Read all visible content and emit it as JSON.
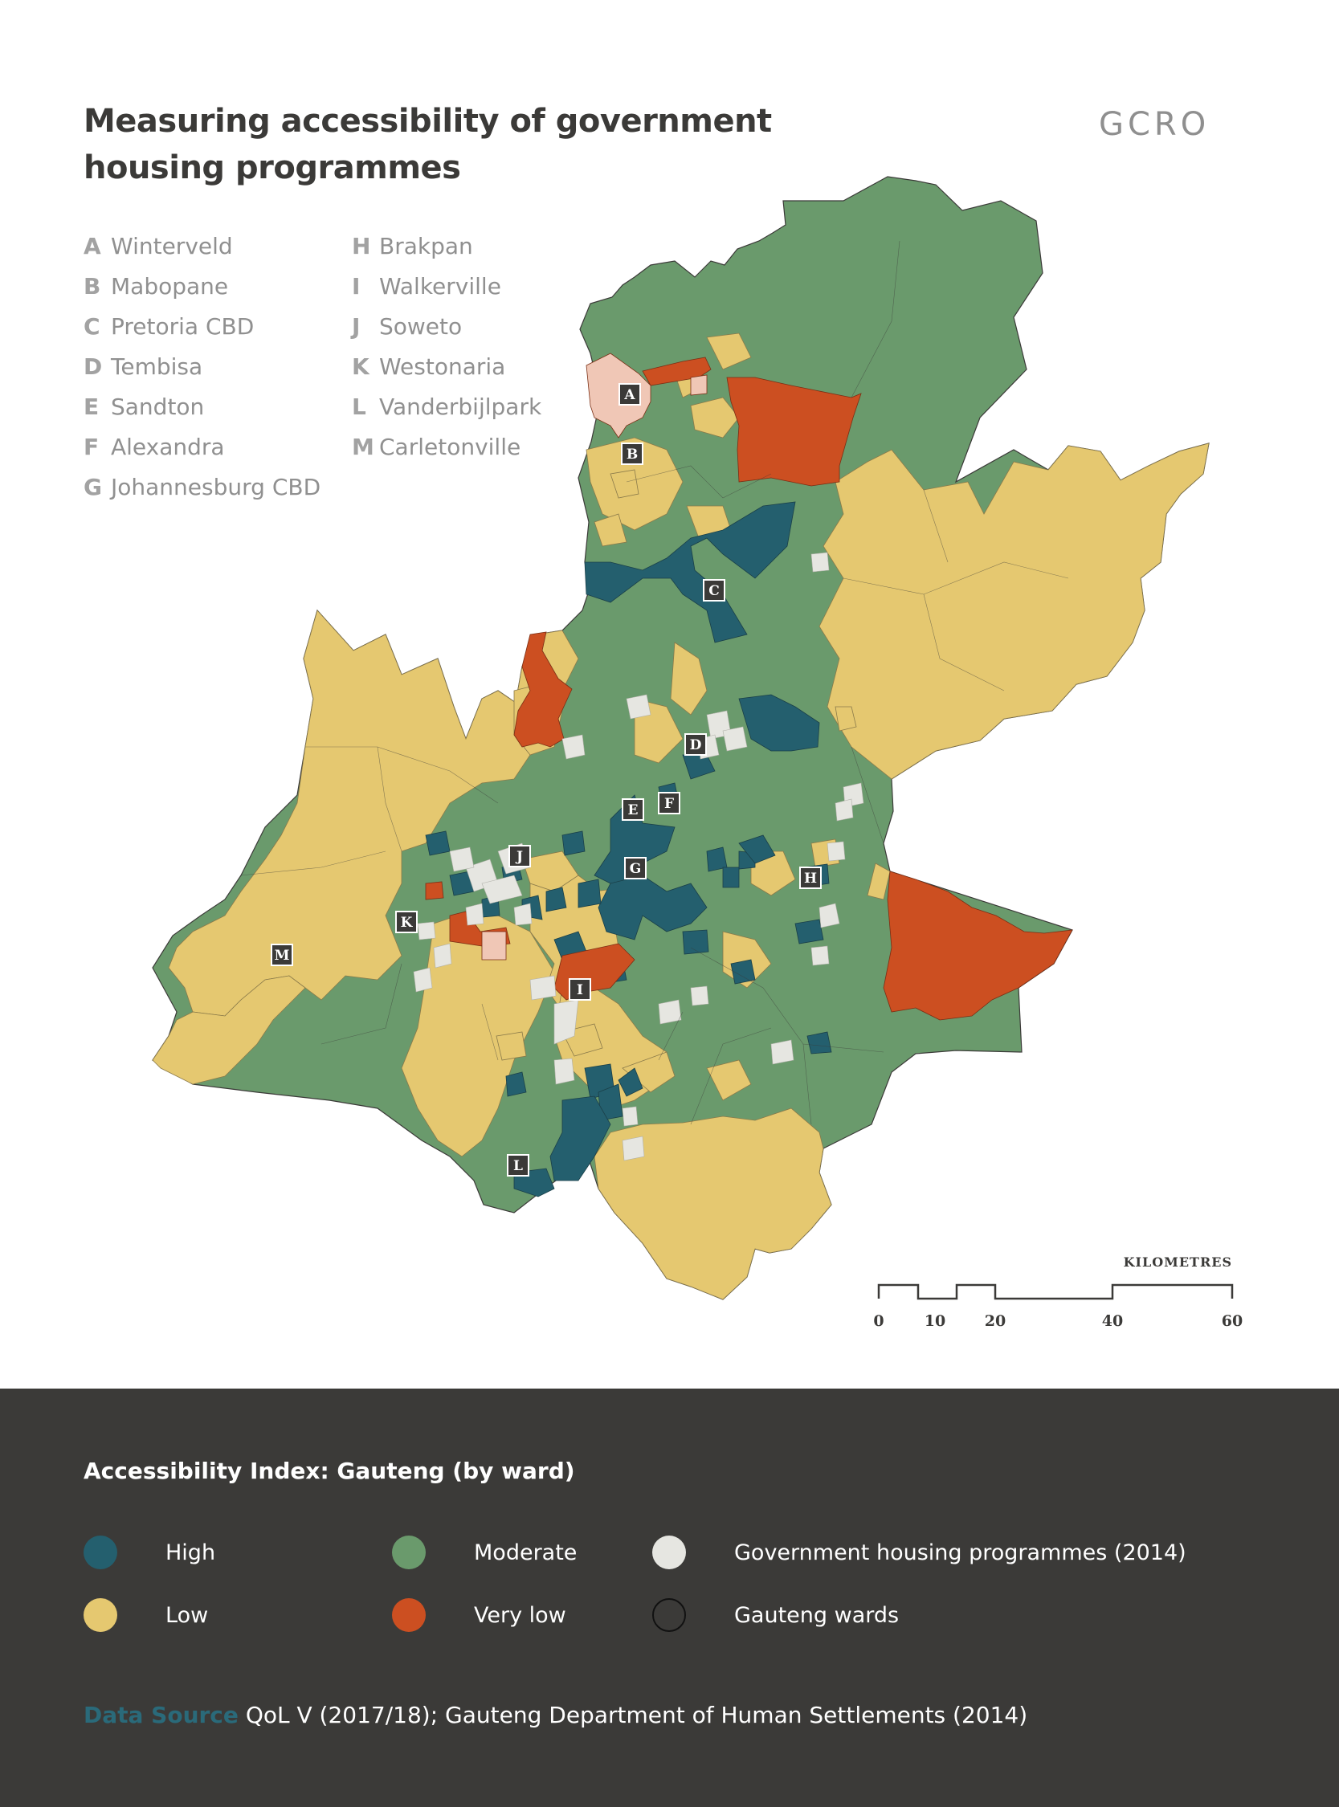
{
  "header": {
    "title_line1": "Measuring accessibility of government",
    "title_line2": "housing programmes",
    "logo_text": "GCRO"
  },
  "places": [
    {
      "letter": "A",
      "name": "Winterveld"
    },
    {
      "letter": "B",
      "name": "Mabopane"
    },
    {
      "letter": "C",
      "name": "Pretoria CBD"
    },
    {
      "letter": "D",
      "name": "Tembisa"
    },
    {
      "letter": "E",
      "name": "Sandton"
    },
    {
      "letter": "F",
      "name": "Alexandra"
    },
    {
      "letter": "G",
      "name": "Johannesburg CBD"
    },
    {
      "letter": "H",
      "name": "Brakpan"
    },
    {
      "letter": "I",
      "name": "Walkerville"
    },
    {
      "letter": "J",
      "name": "Soweto"
    },
    {
      "letter": "K",
      "name": "Westonaria"
    },
    {
      "letter": "L",
      "name": "Vanderbijlpark"
    },
    {
      "letter": "M",
      "name": "Carletonville"
    }
  ],
  "scale": {
    "title": "KILOMETRES",
    "ticks": [
      "0",
      "10",
      "20",
      "40",
      "60"
    ]
  },
  "legend": {
    "title": "Accessibility Index: Gauteng (by ward)",
    "items": [
      {
        "label": "High",
        "color": "#245f6e"
      },
      {
        "label": "Moderate",
        "color": "#6a9a6c"
      },
      {
        "label": "Government housing programmes (2014)",
        "color": "#e6e6e1"
      },
      {
        "label": "Low",
        "color": "#e5c870"
      },
      {
        "label": "Very low",
        "color": "#cc4f21"
      },
      {
        "label": "Gauteng wards",
        "color": "none"
      }
    ]
  },
  "source": {
    "label": "Data Source",
    "text": "QoL V (2017/18); Gauteng Department of Human Settlements (2014)"
  }
}
